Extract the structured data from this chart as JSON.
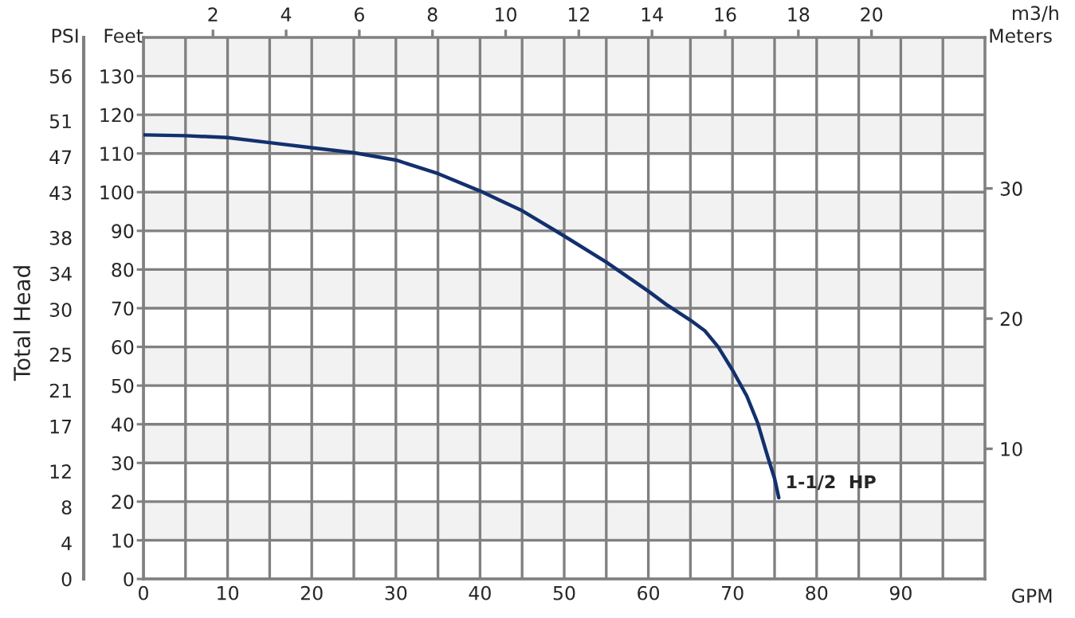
{
  "chart_data": {
    "type": "line",
    "xlabel": "GPM",
    "ylabel": "Feet",
    "y2label": "Meters",
    "y3label": "PSI",
    "x2label": "m3/h",
    "annotations": [
      "Total Head"
    ],
    "series": [
      {
        "name": "1-1/2  HP",
        "color": "#13306e",
        "x": [
          0,
          5,
          10,
          15,
          20,
          25,
          30,
          35,
          40,
          45,
          49.6,
          55,
          60,
          62.1,
          65,
          66.7,
          68.3,
          70,
          71.7,
          73,
          74.2,
          75,
          75.5
        ],
        "values": [
          114.8,
          114.6,
          114.1,
          112.8,
          111.5,
          110.2,
          108.3,
          104.8,
          100.3,
          95.2,
          89.2,
          81.9,
          74.4,
          71,
          66.9,
          64.2,
          60,
          54,
          47.3,
          40.3,
          31.5,
          26,
          21
        ]
      }
    ],
    "xlim": [
      0,
      100
    ],
    "xticks": [
      0,
      {
        "value": 5,
        "label": null
      },
      10,
      {
        "value": 15,
        "label": null
      },
      20,
      {
        "value": 25,
        "label": null
      },
      30,
      {
        "value": 35,
        "label": null
      },
      40,
      {
        "value": 45,
        "label": null
      },
      50,
      {
        "value": 55,
        "label": null
      },
      60,
      {
        "value": 65,
        "label": null
      },
      70,
      {
        "value": 75,
        "label": null
      },
      80,
      {
        "value": 85,
        "label": null
      },
      90,
      {
        "value": 95,
        "label": null
      }
    ],
    "ylim": [
      0,
      140
    ],
    "yticks": [
      0,
      10,
      20,
      30,
      40,
      50,
      60,
      70,
      80,
      90,
      100,
      110,
      120,
      130
    ],
    "y2lim": [
      0,
      41.6
    ],
    "y2ticks": [
      10,
      20,
      30
    ],
    "y3lim": [
      0,
      60.3
    ],
    "y3ticks": [
      0,
      4,
      8,
      12,
      17,
      21,
      25,
      30,
      34,
      38,
      43,
      47,
      51,
      56
    ],
    "x2lim": [
      0.1,
      23.1
    ],
    "x2ticks": [
      2,
      4,
      6,
      8,
      10,
      12,
      14,
      16,
      18,
      20
    ],
    "bands": [
      {
        "axis": "y",
        "from": 10,
        "to": 20,
        "color": "#f2f2f2"
      },
      {
        "axis": "y",
        "from": 30,
        "to": 40,
        "color": "#f2f2f2"
      },
      {
        "axis": "y",
        "from": 50,
        "to": 60,
        "color": "#f2f2f2"
      },
      {
        "axis": "y",
        "from": 70,
        "to": 80,
        "color": "#f2f2f2"
      },
      {
        "axis": "y",
        "from": 90,
        "to": 100,
        "color": "#f2f2f2"
      },
      {
        "axis": "y",
        "from": 110,
        "to": 120,
        "color": "#f2f2f2"
      },
      {
        "axis": "y",
        "from": 130,
        "to": 140,
        "color": "#f2f2f2"
      }
    ],
    "grid": true,
    "legend": false,
    "marker": "none",
    "line_style": "solid"
  }
}
